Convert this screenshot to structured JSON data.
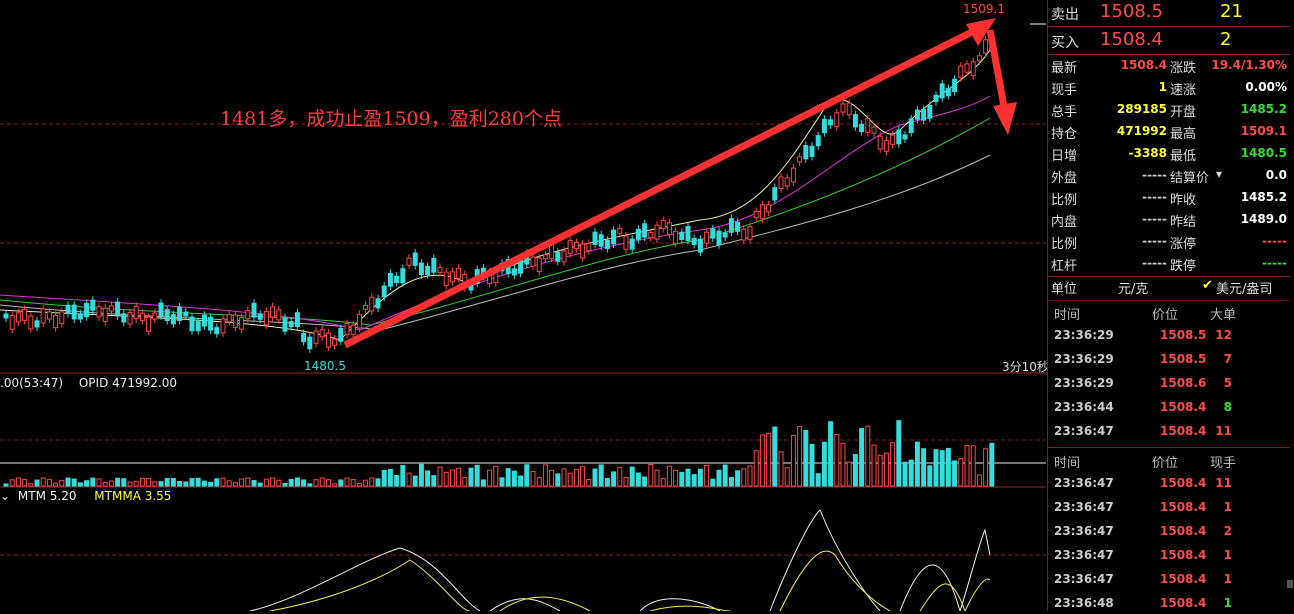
{
  "annotation": "1481多，成功止盈1509，盈利280个点",
  "chart_labels": {
    "high": "1509.1",
    "low": "1480.5",
    "period": "3分10秒"
  },
  "indicators": {
    "vol_prefix": ".00(53:47)",
    "opid": "OPID 471992.00",
    "mtm": "MTM 5.20",
    "mtmma": "MTMMA 3.55"
  },
  "quote": {
    "sell": {
      "label": "卖出",
      "price": "1508.5",
      "qty": "21"
    },
    "buy": {
      "label": "买入",
      "price": "1508.4",
      "qty": "2"
    },
    "left": [
      {
        "label": "最新",
        "value": "1508.4",
        "color": "red"
      },
      {
        "label": "现手",
        "value": "1",
        "color": "yellow"
      },
      {
        "label": "总手",
        "value": "289185",
        "color": "yellow"
      },
      {
        "label": "持仓",
        "value": "471992",
        "color": "yellow"
      },
      {
        "label": "日增",
        "value": "-3388",
        "color": "yellow"
      },
      {
        "label": "外盘",
        "value": "-----",
        "color": "gray"
      },
      {
        "label": "比例",
        "value": "-----",
        "color": "gray"
      },
      {
        "label": "内盘",
        "value": "-----",
        "color": "gray"
      },
      {
        "label": "比例",
        "value": "-----",
        "color": "gray"
      },
      {
        "label": "杠杆",
        "value": "-----",
        "color": "gray"
      }
    ],
    "right": [
      {
        "label": "涨跌",
        "value": "19.4/1.30%",
        "color": "red"
      },
      {
        "label": "速涨",
        "value": "0.00%",
        "color": "white"
      },
      {
        "label": "开盘",
        "value": "1485.2",
        "color": "green"
      },
      {
        "label": "最高",
        "value": "1509.1",
        "color": "red"
      },
      {
        "label": "最低",
        "value": "1480.5",
        "color": "green"
      },
      {
        "label": "结算价",
        "value": "0.0",
        "color": "white"
      },
      {
        "label": "昨收",
        "value": "1485.2",
        "color": "white"
      },
      {
        "label": "昨结",
        "value": "1489.0",
        "color": "white"
      },
      {
        "label": "涨停",
        "value": "-----",
        "color": "red"
      },
      {
        "label": "跌停",
        "value": "-----",
        "color": "green"
      }
    ],
    "unit_label": "单位",
    "unit_value": "元/克",
    "currency": "美元/盎司"
  },
  "big_orders": {
    "headers": [
      "时间",
      "价位",
      "大单"
    ],
    "rows": [
      {
        "time": "23:36:29",
        "price": "1508.5",
        "qty": "12",
        "color": "red"
      },
      {
        "time": "23:36:29",
        "price": "1508.5",
        "qty": "7",
        "color": "red"
      },
      {
        "time": "23:36:29",
        "price": "1508.6",
        "qty": "5",
        "color": "red"
      },
      {
        "time": "23:36:44",
        "price": "1508.4",
        "qty": "8",
        "color": "green"
      },
      {
        "time": "23:36:47",
        "price": "1508.4",
        "qty": "11",
        "color": "red"
      }
    ]
  },
  "ticks": {
    "headers": [
      "时间",
      "价位",
      "现手"
    ],
    "rows": [
      {
        "time": "23:36:47",
        "price": "1508.4",
        "qty": "11",
        "color": "red"
      },
      {
        "time": "23:36:47",
        "price": "1508.4",
        "qty": "1",
        "color": "red"
      },
      {
        "time": "23:36:47",
        "price": "1508.4",
        "qty": "2",
        "color": "red"
      },
      {
        "time": "23:36:47",
        "price": "1508.4",
        "qty": "1",
        "color": "red"
      },
      {
        "time": "23:36:47",
        "price": "1508.4",
        "qty": "1",
        "color": "red"
      },
      {
        "time": "23:36:48",
        "price": "1508.4",
        "qty": "1",
        "color": "green"
      }
    ]
  }
}
